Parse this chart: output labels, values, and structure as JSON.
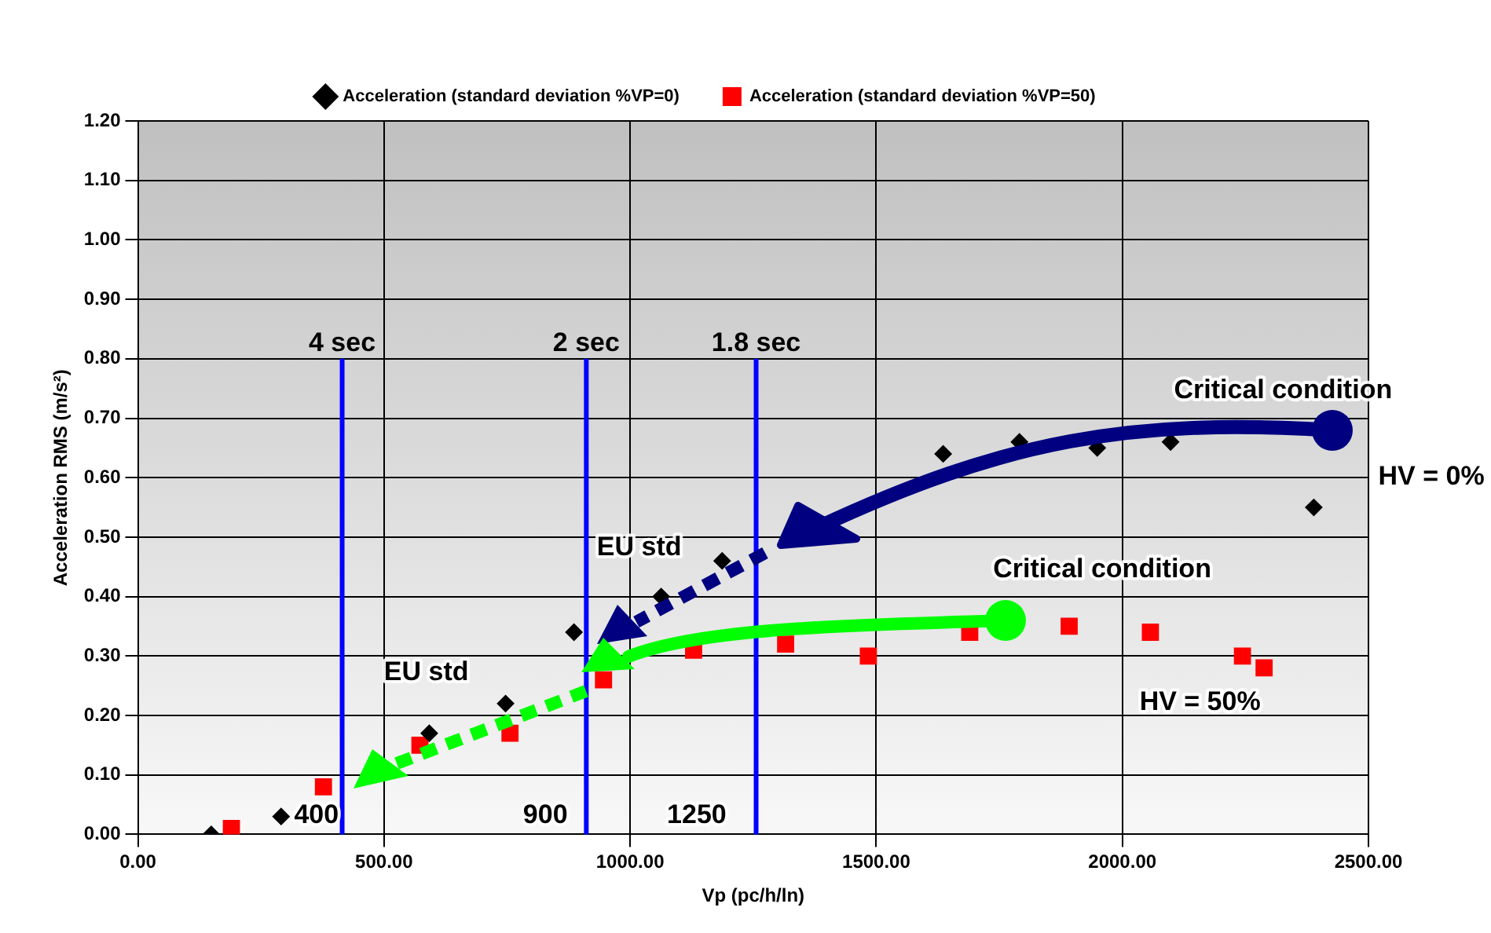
{
  "chart_data": {
    "type": "scatter",
    "xlabel": "Vp (pc/h/ln)",
    "ylabel": "Acceleration RMS (m/s²)",
    "series": [
      {
        "name": "Acceleration (standard deviation %VP=0)",
        "color": "#000000",
        "marker": "diamond",
        "x": [
          149,
          291,
          592,
          747,
          886,
          1063,
          1187,
          1636,
          1791,
          1949,
          2098,
          2389
        ],
        "values": [
          0.0,
          0.03,
          0.17,
          0.22,
          0.34,
          0.4,
          0.46,
          0.64,
          0.66,
          0.65,
          0.66,
          0.55
        ]
      },
      {
        "name": "Acceleration (standard deviation %VP=50)",
        "color": "#ff0000",
        "marker": "square",
        "x": [
          190,
          377,
          573,
          756,
          946,
          1129,
          1316,
          1484,
          1690,
          1892,
          2057,
          2244,
          2288
        ],
        "values": [
          0.01,
          0.08,
          0.15,
          0.17,
          0.26,
          0.31,
          0.32,
          0.3,
          0.34,
          0.35,
          0.34,
          0.3,
          0.28
        ]
      }
    ],
    "xlim": [
      0,
      2500
    ],
    "xticks": [
      {
        "value": 0,
        "label": "0.00"
      },
      {
        "value": 500,
        "label": "500.00"
      },
      {
        "value": 1000,
        "label": "1000.00"
      },
      {
        "value": 1500,
        "label": "1500.00"
      },
      {
        "value": 2000,
        "label": "2000.00"
      },
      {
        "value": 2500,
        "label": "2500.00"
      }
    ],
    "ylim": [
      0,
      1.2
    ],
    "yticks": [
      {
        "value": 0,
        "label": "0.00"
      },
      {
        "value": 0.1,
        "label": "0.10"
      },
      {
        "value": 0.2,
        "label": "0.20"
      },
      {
        "value": 0.3,
        "label": "0.30"
      },
      {
        "value": 0.4,
        "label": "0.40"
      },
      {
        "value": 0.5,
        "label": "0.50"
      },
      {
        "value": 0.6,
        "label": "0.60"
      },
      {
        "value": 0.7,
        "label": "0.70"
      },
      {
        "value": 0.8,
        "label": "0.80"
      },
      {
        "value": 0.9,
        "label": "0.90"
      },
      {
        "value": 1.0,
        "label": "1.00"
      },
      {
        "value": 1.1,
        "label": "1.10"
      },
      {
        "value": 1.2,
        "label": "1.20"
      }
    ],
    "grid": true,
    "legend": "top",
    "ref_lines": [
      {
        "axis": "x",
        "value": 415,
        "label": "4 sec",
        "color": "#0000ff"
      },
      {
        "axis": "x",
        "value": 911,
        "label": "2 sec",
        "color": "#0000ff"
      },
      {
        "axis": "x",
        "value": 1256,
        "label": "1.8 sec",
        "color": "#0000ff"
      }
    ],
    "annotations": [
      "Critical condition",
      "HV = 0%",
      "Critical condition",
      "HV = 50%",
      "EU std",
      "EU std",
      "400",
      "900",
      "1250"
    ]
  }
}
